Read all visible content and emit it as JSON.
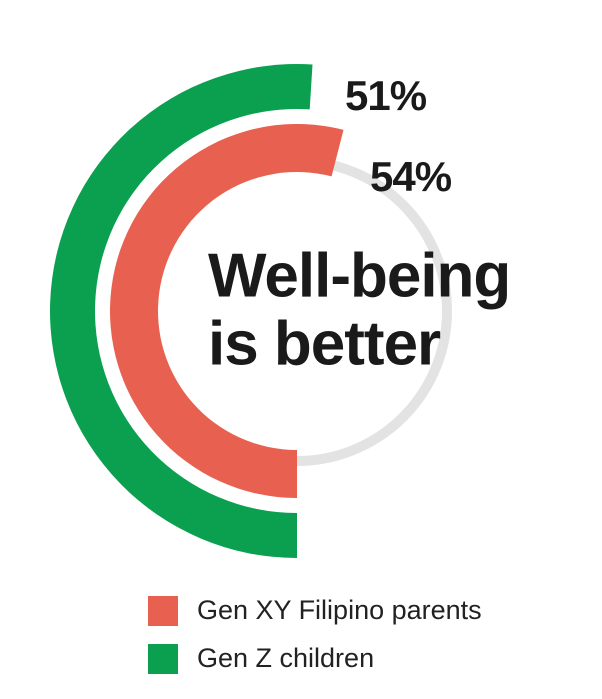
{
  "chart_data": {
    "type": "radial-bar",
    "title": [
      "Well-being",
      "is better"
    ],
    "ylim": [
      0,
      100
    ],
    "track_color": "#e3e3e3",
    "series": [
      {
        "name": "Gen XY Filipino parents",
        "color": "#e8604f",
        "values": [
          54
        ],
        "value_labels": [
          "54%"
        ]
      },
      {
        "name": "Gen Z children",
        "color": "#0aa04f",
        "values": [
          51
        ],
        "value_labels": [
          "51%"
        ]
      }
    ]
  }
}
